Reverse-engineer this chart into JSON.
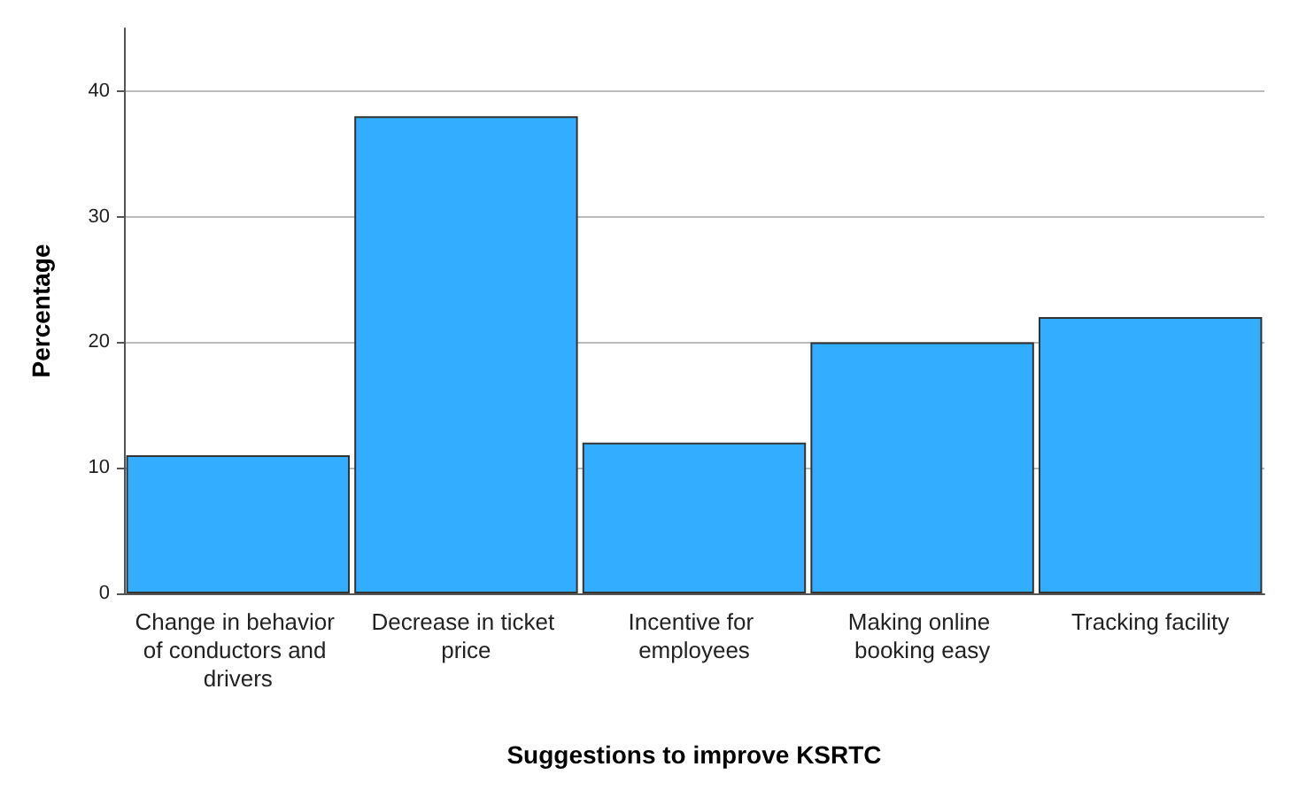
{
  "chart_data": {
    "type": "bar",
    "xlabel": "Suggestions to improve KSRTC",
    "ylabel": "Percentage",
    "categories": [
      "Change in behavior of conductors and drivers",
      "Decrease in ticket price",
      "Incentive for employees",
      "Making online booking easy",
      "Tracking facility"
    ],
    "values": [
      11,
      38,
      12,
      20,
      22
    ],
    "color": "#33adff",
    "ylim": [
      0,
      45
    ],
    "yticks": [
      0,
      10,
      20,
      30,
      40
    ],
    "grid": "y"
  }
}
